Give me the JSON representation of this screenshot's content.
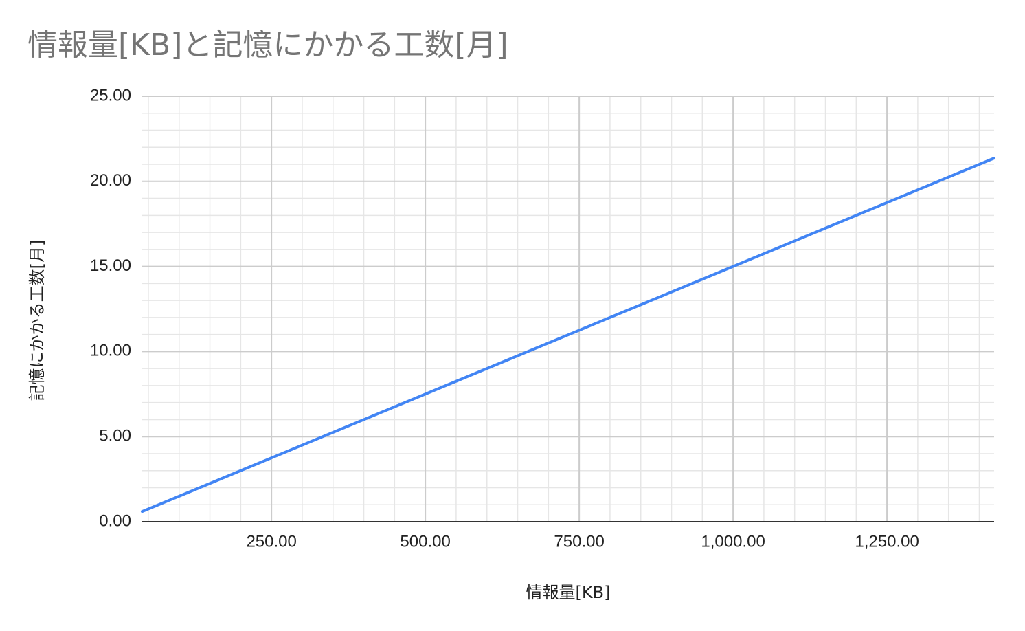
{
  "chart_data": {
    "type": "line",
    "title": "情報量[KB]と記憶にかかる工数[月]",
    "x_label": "情報量[KB]",
    "y_label": "記憶にかかる工数[月]",
    "x": [
      40,
      1424
    ],
    "values": [
      0.6,
      21.36
    ],
    "color": "#4285f4",
    "xlim": [
      40,
      1424
    ],
    "xticks": [
      {
        "value": 250,
        "label": "250.00"
      },
      {
        "value": 500,
        "label": "500.00"
      },
      {
        "value": 750,
        "label": "750.00"
      },
      {
        "value": 1000,
        "label": "1,000.00"
      },
      {
        "value": 1250,
        "label": "1,250.00"
      }
    ],
    "ylim": [
      0,
      25
    ],
    "yticks": [
      {
        "value": 0,
        "label": "0.00"
      },
      {
        "value": 5,
        "label": "5.00"
      },
      {
        "value": 10,
        "label": "10.00"
      },
      {
        "value": 15,
        "label": "15.00"
      },
      {
        "value": 20,
        "label": "20.00"
      },
      {
        "value": 25,
        "label": "25.00"
      }
    ],
    "grid": true,
    "minor_grid": true
  }
}
